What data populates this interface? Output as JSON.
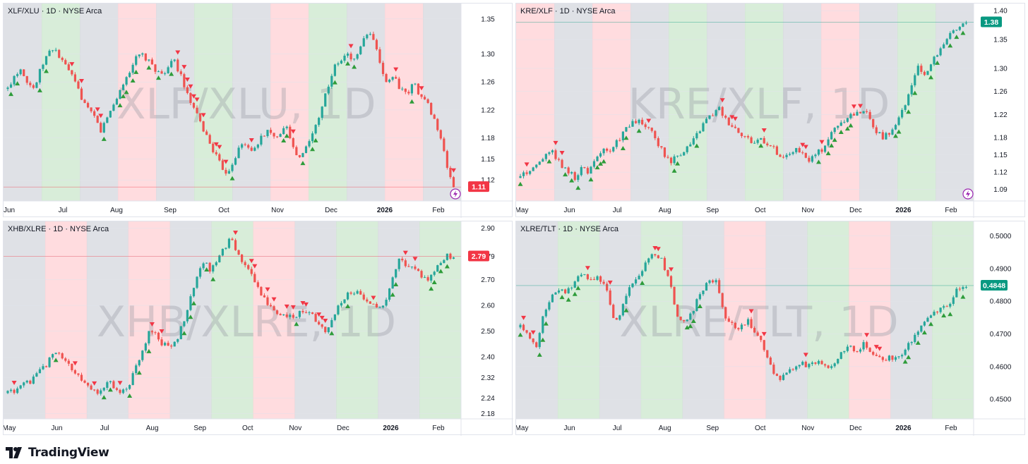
{
  "colors": {
    "up": "#26a69a",
    "down": "#ef5350",
    "green_bg": "#c8e6c9",
    "red_bg": "#ffcdd2",
    "gray_bg": "#d1d4dc",
    "badge_green": "#089981",
    "badge_red": "#f23645",
    "signal_icon": "#9c27b0"
  },
  "brand": {
    "name": "TradingView"
  },
  "charts": [
    {
      "title": {
        "symbol": "XLF/XLU",
        "interval": "1D",
        "exchange": "NYSE Arca"
      },
      "watermark": "XLF/XLU, 1D",
      "y_ticks": [
        "1.35",
        "1.30",
        "1.26",
        "1.22",
        "1.18",
        "1.15",
        "1.12"
      ],
      "x_ticks": [
        "Jun",
        "Jul",
        "Aug",
        "Sep",
        "Oct",
        "Nov",
        "Dec",
        "2026",
        "Feb"
      ],
      "last_value": "1.11",
      "badge_color": "#f23645",
      "signal_icon": "lightning-icon"
    },
    {
      "title": {
        "symbol": "KRE/XLF",
        "interval": "1D",
        "exchange": "NYSE Arca"
      },
      "watermark": "KRE/XLF, 1D",
      "y_ticks": [
        "1.40",
        "1.35",
        "1.30",
        "1.26",
        "1.22",
        "1.18",
        "1.15",
        "1.12",
        "1.09"
      ],
      "x_ticks": [
        "May",
        "Jun",
        "Jul",
        "Aug",
        "Sep",
        "Oct",
        "Nov",
        "Dec",
        "2026",
        "Feb"
      ],
      "last_value": "1.38",
      "badge_color": "#089981",
      "signal_icon": "lightning-icon"
    },
    {
      "title": {
        "symbol": "XHB/XLRE",
        "interval": "1D",
        "exchange": "NYSE Arca"
      },
      "watermark": "XHB/XLRE, 1D",
      "y_ticks": [
        "2.90",
        "2.79",
        "2.70",
        "2.60",
        "2.50",
        "2.40",
        "2.32",
        "2.24",
        "2.18"
      ],
      "x_ticks": [
        "May",
        "Jun",
        "Jul",
        "Aug",
        "Sep",
        "Oct",
        "Nov",
        "Dec",
        "2026",
        "Feb"
      ],
      "last_value": "2.79",
      "badge_color": "#f23645"
    },
    {
      "title": {
        "symbol": "XLRE/TLT",
        "interval": "1D",
        "exchange": "NYSE Arca"
      },
      "watermark": "XLRE/TLT, 1D",
      "y_ticks": [
        "0.5000",
        "0.4900",
        "0.4800",
        "0.4700",
        "0.4600",
        "0.4500"
      ],
      "x_ticks": [
        "May",
        "Jun",
        "Jul",
        "Aug",
        "Sep",
        "Oct",
        "Nov",
        "Dec",
        "2026",
        "Feb"
      ],
      "last_value": "0.4848",
      "badge_color": "#089981"
    }
  ],
  "chart_data": [
    {
      "type": "candlestick",
      "title": "XLF/XLU · 1D · NYSE Arca",
      "x_range": [
        "Jun",
        "Feb"
      ],
      "ylim": [
        1.09,
        1.37
      ],
      "close_path": [
        1.25,
        1.27,
        1.28,
        1.26,
        1.25,
        1.28,
        1.3,
        1.31,
        1.29,
        1.28,
        1.26,
        1.24,
        1.22,
        1.21,
        1.19,
        1.21,
        1.23,
        1.25,
        1.27,
        1.29,
        1.3,
        1.29,
        1.28,
        1.27,
        1.28,
        1.29,
        1.27,
        1.24,
        1.22,
        1.2,
        1.18,
        1.16,
        1.14,
        1.13,
        1.15,
        1.17,
        1.17,
        1.16,
        1.18,
        1.19,
        1.18,
        1.19,
        1.2,
        1.16,
        1.15,
        1.17,
        1.19,
        1.22,
        1.25,
        1.28,
        1.29,
        1.3,
        1.29,
        1.31,
        1.33,
        1.32,
        1.28,
        1.26,
        1.27,
        1.25,
        1.24,
        1.26,
        1.24,
        1.23,
        1.21,
        1.18,
        1.14,
        1.11
      ],
      "last": 1.11,
      "background_regimes": [
        "gray",
        "green",
        "gray",
        "red",
        "gray",
        "green",
        "gray",
        "red",
        "green",
        "gray",
        "red",
        "gray"
      ]
    },
    {
      "type": "candlestick",
      "title": "KRE/XLF · 1D · NYSE Arca",
      "x_range": [
        "May",
        "Feb"
      ],
      "ylim": [
        1.07,
        1.41
      ],
      "close_path": [
        1.11,
        1.12,
        1.13,
        1.14,
        1.16,
        1.15,
        1.13,
        1.12,
        1.11,
        1.13,
        1.12,
        1.14,
        1.16,
        1.15,
        1.17,
        1.19,
        1.2,
        1.21,
        1.2,
        1.19,
        1.17,
        1.15,
        1.14,
        1.15,
        1.16,
        1.17,
        1.19,
        1.21,
        1.22,
        1.23,
        1.21,
        1.2,
        1.19,
        1.18,
        1.17,
        1.18,
        1.17,
        1.16,
        1.14,
        1.15,
        1.16,
        1.15,
        1.14,
        1.15,
        1.16,
        1.18,
        1.2,
        1.21,
        1.22,
        1.22,
        1.23,
        1.21,
        1.19,
        1.18,
        1.19,
        1.21,
        1.23,
        1.27,
        1.3,
        1.29,
        1.31,
        1.33,
        1.35,
        1.36,
        1.37,
        1.38
      ],
      "last": 1.38,
      "background_regimes": [
        "red",
        "gray",
        "red",
        "gray",
        "green",
        "gray",
        "green",
        "gray",
        "red",
        "gray",
        "green",
        "gray"
      ]
    },
    {
      "type": "candlestick",
      "title": "XHB/XLRE · 1D · NYSE Arca",
      "x_range": [
        "May",
        "Feb"
      ],
      "ylim": [
        2.16,
        2.92
      ],
      "close_path": [
        2.26,
        2.27,
        2.29,
        2.3,
        2.32,
        2.35,
        2.38,
        2.43,
        2.4,
        2.37,
        2.34,
        2.3,
        2.28,
        2.26,
        2.28,
        2.31,
        2.27,
        2.26,
        2.3,
        2.36,
        2.43,
        2.5,
        2.48,
        2.45,
        2.44,
        2.47,
        2.53,
        2.62,
        2.71,
        2.77,
        2.74,
        2.78,
        2.82,
        2.86,
        2.8,
        2.76,
        2.72,
        2.67,
        2.63,
        2.59,
        2.56,
        2.57,
        2.55,
        2.57,
        2.58,
        2.56,
        2.53,
        2.49,
        2.54,
        2.6,
        2.64,
        2.66,
        2.64,
        2.62,
        2.61,
        2.58,
        2.63,
        2.7,
        2.78,
        2.76,
        2.74,
        2.72,
        2.7,
        2.73,
        2.77,
        2.79,
        2.79
      ],
      "last": 2.79,
      "background_regimes": [
        "gray",
        "red",
        "gray",
        "red",
        "gray",
        "green",
        "red",
        "gray",
        "green",
        "gray",
        "green"
      ]
    },
    {
      "type": "candlestick",
      "title": "XLRE/TLT · 1D · NYSE Arca",
      "x_range": [
        "May",
        "Feb"
      ],
      "ylim": [
        0.444,
        0.504
      ],
      "close_path": [
        0.472,
        0.469,
        0.466,
        0.476,
        0.481,
        0.484,
        0.483,
        0.486,
        0.488,
        0.486,
        0.487,
        0.485,
        0.473,
        0.478,
        0.484,
        0.487,
        0.491,
        0.495,
        0.493,
        0.487,
        0.476,
        0.474,
        0.477,
        0.482,
        0.487,
        0.486,
        0.476,
        0.473,
        0.472,
        0.474,
        0.471,
        0.466,
        0.46,
        0.456,
        0.458,
        0.459,
        0.461,
        0.46,
        0.462,
        0.46,
        0.461,
        0.464,
        0.466,
        0.465,
        0.467,
        0.464,
        0.462,
        0.463,
        0.462,
        0.465,
        0.468,
        0.472,
        0.475,
        0.477,
        0.478,
        0.48,
        0.484,
        0.4848
      ],
      "last": 0.4848,
      "background_regimes": [
        "gray",
        "green",
        "gray",
        "green",
        "gray",
        "red",
        "gray",
        "green",
        "red",
        "gray",
        "green"
      ]
    }
  ]
}
